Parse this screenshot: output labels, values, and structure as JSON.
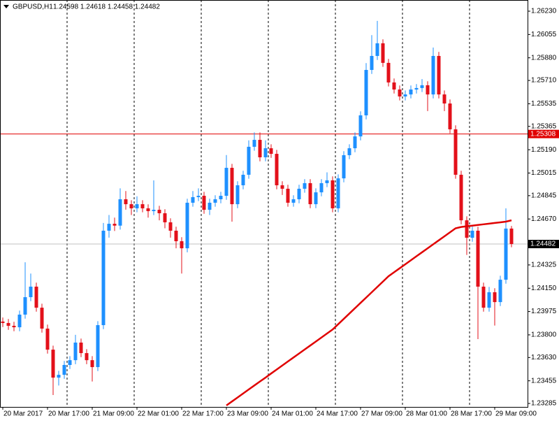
{
  "chart_data": {
    "type": "candlestick",
    "title": "GBPUSD,H1",
    "quote": "1.24598 1.24618 1.24458 1.24482",
    "ylim": [
      1.23259,
      1.26314
    ],
    "yticks": [
      {
        "value": 1.2623,
        "label": "1.26230"
      },
      {
        "value": 1.26055,
        "label": "1.26055"
      },
      {
        "value": 1.2588,
        "label": "1.25880"
      },
      {
        "value": 1.2571,
        "label": "1.25710"
      },
      {
        "value": 1.25535,
        "label": "1.25535"
      },
      {
        "value": 1.25365,
        "label": "1.25365"
      },
      {
        "value": 1.2519,
        "label": "1.25190"
      },
      {
        "value": 1.25015,
        "label": "1.25015"
      },
      {
        "value": 1.24845,
        "label": "1.24845"
      },
      {
        "value": 1.2467,
        "label": "1.24670"
      },
      {
        "value": 1.24325,
        "label": "1.24325"
      },
      {
        "value": 1.2415,
        "label": "1.24150"
      },
      {
        "value": 1.23975,
        "label": "1.23975"
      },
      {
        "value": 1.238,
        "label": "1.23800"
      },
      {
        "value": 1.2363,
        "label": "1.23630"
      },
      {
        "value": 1.23455,
        "label": "1.23455"
      },
      {
        "value": 1.23285,
        "label": "1.23285"
      }
    ],
    "xticks": [
      {
        "value": 0,
        "label": "20 Mar 2017"
      },
      {
        "value": 8,
        "label": "20 Mar 17:00"
      },
      {
        "value": 16,
        "label": "21 Mar 09:00"
      },
      {
        "value": 24,
        "label": "22 Mar 01:00"
      },
      {
        "value": 32,
        "label": "22 Mar 17:00"
      },
      {
        "value": 40,
        "label": "23 Mar 09:00"
      },
      {
        "value": 48,
        "label": "24 Mar 01:00"
      },
      {
        "value": 56,
        "label": "24 Mar 17:00"
      },
      {
        "value": 64,
        "label": "27 Mar 09:00"
      },
      {
        "value": 72,
        "label": "28 Mar 01:00"
      },
      {
        "value": 80,
        "label": "28 Mar 17:00"
      },
      {
        "value": 88,
        "label": "29 Mar 09:00"
      }
    ],
    "up_color": "#1e90ff",
    "down_color": "#e3101a",
    "open": [
      1.239,
      1.23889,
      1.23868,
      1.23857,
      1.23952,
      1.24083,
      1.24162,
      1.24004,
      1.23847,
      1.23689,
      1.23479,
      1.235,
      1.23574,
      1.2361,
      1.23742,
      1.23663,
      1.2361,
      1.23558,
      1.23873,
      1.24582,
      1.24634,
      1.2462,
      1.24818,
      1.24781,
      1.2475,
      1.24781,
      1.2475,
      1.24729,
      1.24739,
      1.24713,
      1.24645,
      1.24582,
      1.24503,
      1.2445,
      1.24792,
      1.24834,
      1.24844,
      1.24739,
      1.24792,
      1.24818,
      1.24844,
      1.25054,
      1.24781,
      1.24923,
      1.25002,
      1.25212,
      1.25264,
      1.25133,
      1.25201,
      1.25159,
      1.24923,
      1.24897,
      1.24792,
      1.24818,
      1.24897,
      1.24939,
      1.24781,
      1.2487,
      1.24939,
      1.2496,
      1.2475,
      1.24975,
      1.25149,
      1.25201,
      1.2529,
      1.25448,
      1.25789,
      1.25894,
      1.25989,
      1.25842,
      1.25695,
      1.25642,
      1.2559,
      1.25605,
      1.25642,
      1.25653,
      1.25674,
      1.25605,
      1.25894,
      1.25605,
      1.25537,
      1.25343,
      1.25002,
      1.2466,
      1.24529,
      1.24582,
      1.24162,
      1.24004,
      1.2412,
      1.24046,
      1.24214,
      1.24598
    ],
    "high": [
      1.2393,
      1.23919,
      1.23898,
      1.23982,
      1.24345,
      1.2426,
      1.24192,
      1.24034,
      1.23877,
      1.23719,
      1.2353,
      1.23604,
      1.2364,
      1.238,
      1.23772,
      1.23693,
      1.2364,
      1.23903,
      1.2464,
      1.247,
      1.2468,
      1.249,
      1.2488,
      1.24811,
      1.2484,
      1.24811,
      1.2478,
      1.2496,
      1.24769,
      1.24743,
      1.24675,
      1.24612,
      1.24533,
      1.24822,
      1.2488,
      1.249,
      1.24874,
      1.24822,
      1.24848,
      1.24874,
      1.2515,
      1.25084,
      1.24953,
      1.25032,
      1.2526,
      1.2532,
      1.2532,
      1.2526,
      1.25231,
      1.25189,
      1.24953,
      1.24927,
      1.24848,
      1.24927,
      1.24969,
      1.24969,
      1.249,
      1.24969,
      1.2502,
      1.2499,
      1.25005,
      1.25179,
      1.25231,
      1.2532,
      1.25478,
      1.2584,
      1.2605,
      1.26157,
      1.26019,
      1.25872,
      1.25725,
      1.25672,
      1.25635,
      1.25672,
      1.25683,
      1.2572,
      1.25704,
      1.25957,
      1.25924,
      1.25635,
      1.25567,
      1.25373,
      1.25032,
      1.2469,
      1.24612,
      1.24612,
      1.24192,
      1.2416,
      1.2415,
      1.24244,
      1.2475,
      1.24618
    ],
    "low": [
      1.23859,
      1.23838,
      1.23827,
      1.23827,
      1.23922,
      1.24053,
      1.23974,
      1.23817,
      1.23659,
      1.23348,
      1.2342,
      1.2347,
      1.23544,
      1.2358,
      1.23633,
      1.2358,
      1.2345,
      1.23528,
      1.23843,
      1.2453,
      1.2458,
      1.2459,
      1.2474,
      1.247,
      1.2472,
      1.2472,
      1.2468,
      1.24699,
      1.2466,
      1.246,
      1.2453,
      1.2445,
      1.2426,
      1.2442,
      1.24762,
      1.24804,
      1.24709,
      1.247,
      1.24762,
      1.24788,
      1.24814,
      1.2465,
      1.24751,
      1.24893,
      1.24972,
      1.25182,
      1.25103,
      1.25103,
      1.25129,
      1.24893,
      1.2485,
      1.24762,
      1.24762,
      1.24788,
      1.24867,
      1.24751,
      1.24751,
      1.2484,
      1.24909,
      1.2472,
      1.2472,
      1.24945,
      1.25119,
      1.25171,
      1.2526,
      1.25418,
      1.25759,
      1.25864,
      1.25812,
      1.25665,
      1.25612,
      1.2556,
      1.2556,
      1.25575,
      1.25612,
      1.25623,
      1.2548,
      1.25575,
      1.25575,
      1.2548,
      1.25313,
      1.24972,
      1.2463,
      1.244,
      1.24499,
      1.23768,
      1.23974,
      1.23974,
      1.2387,
      1.24016,
      1.24184,
      1.24458
    ],
    "close": [
      1.23889,
      1.23868,
      1.23857,
      1.23952,
      1.24083,
      1.24162,
      1.24004,
      1.23847,
      1.23689,
      1.23479,
      1.235,
      1.23574,
      1.2361,
      1.23742,
      1.23663,
      1.2361,
      1.23558,
      1.23873,
      1.24582,
      1.24634,
      1.2462,
      1.24818,
      1.24781,
      1.2475,
      1.24781,
      1.2475,
      1.24729,
      1.24739,
      1.24713,
      1.24645,
      1.24582,
      1.24503,
      1.2445,
      1.24792,
      1.24834,
      1.24844,
      1.24739,
      1.24792,
      1.24818,
      1.24844,
      1.25054,
      1.24781,
      1.24923,
      1.25002,
      1.25212,
      1.25264,
      1.25133,
      1.25201,
      1.25159,
      1.24923,
      1.24897,
      1.24792,
      1.24818,
      1.24897,
      1.24939,
      1.24781,
      1.2487,
      1.24939,
      1.2496,
      1.2475,
      1.24975,
      1.25149,
      1.25201,
      1.2529,
      1.25448,
      1.25789,
      1.25894,
      1.25989,
      1.25842,
      1.25695,
      1.25642,
      1.2559,
      1.25605,
      1.25642,
      1.25653,
      1.25674,
      1.25605,
      1.25894,
      1.25605,
      1.25537,
      1.25343,
      1.25002,
      1.2466,
      1.24529,
      1.24582,
      1.24162,
      1.24004,
      1.2412,
      1.24046,
      1.24214,
      1.24598,
      1.24482
    ],
    "ma": {
      "color": "#e00000",
      "values": [
        null,
        null,
        null,
        null,
        null,
        null,
        null,
        null,
        null,
        null,
        null,
        null,
        null,
        null,
        null,
        null,
        null,
        null,
        null,
        null,
        null,
        null,
        null,
        null,
        null,
        null,
        null,
        null,
        null,
        null,
        null,
        null,
        null,
        null,
        null,
        null,
        null,
        null,
        null,
        null,
        1.2327,
        1.233,
        1.2333,
        1.2336,
        1.2339,
        1.2342,
        1.2345,
        1.23479,
        1.2351,
        1.2354,
        1.2357,
        1.236,
        1.2363,
        1.2366,
        1.2369,
        1.2372,
        1.2375,
        1.2378,
        1.2381,
        1.2384,
        1.2388,
        1.2392,
        1.2396,
        1.24,
        1.2404,
        1.2408,
        1.2412,
        1.2416,
        1.242,
        1.2424,
        1.2427,
        1.243,
        1.2433,
        1.2436,
        1.2439,
        1.2442,
        1.2445,
        1.2448,
        1.2451,
        1.2454,
        1.2457,
        1.246,
        1.2461,
        1.24615,
        1.2462,
        1.24625,
        1.2463,
        1.24635,
        1.2464,
        1.24645,
        1.2465,
        1.2466
      ]
    },
    "level": {
      "value": 1.25308,
      "label": "1.25308",
      "color": "#e00000"
    },
    "bid": {
      "value": 1.24482,
      "label": "1.24482",
      "color": "#c0c0c0"
    }
  }
}
